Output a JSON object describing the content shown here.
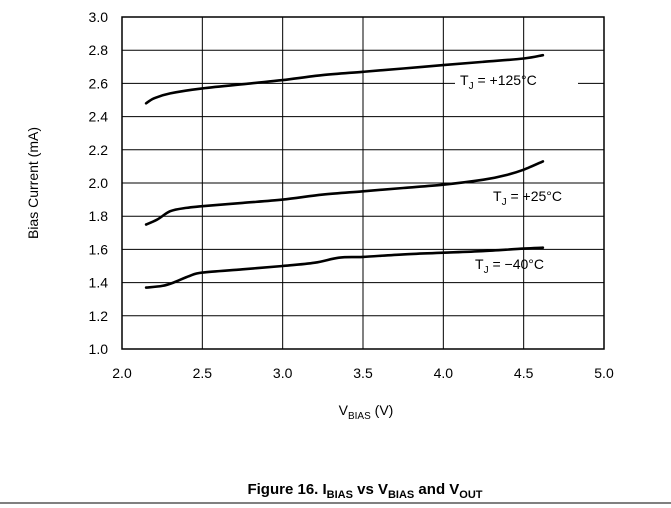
{
  "chart_data": {
    "type": "line",
    "xlabel": {
      "main": "V",
      "sub": "BIAS",
      "unit": " (V)"
    },
    "ylabel": "Bias Current (mA)",
    "xlim": [
      2.0,
      5.0
    ],
    "ylim": [
      1.0,
      3.0
    ],
    "x_ticks": [
      "2.0",
      "2.5",
      "3.0",
      "3.5",
      "4.0",
      "4.5",
      "5.0"
    ],
    "y_ticks": [
      "1.0",
      "1.2",
      "1.4",
      "1.6",
      "1.8",
      "2.0",
      "2.2",
      "2.4",
      "2.6",
      "2.8",
      "3.0"
    ],
    "grid": true,
    "series": [
      {
        "label": {
          "main": "T",
          "sub": "J",
          "rest": " = +125°C"
        },
        "points": [
          [
            2.15,
            2.48
          ],
          [
            2.2,
            2.51
          ],
          [
            2.3,
            2.54
          ],
          [
            2.5,
            2.57
          ],
          [
            2.8,
            2.6
          ],
          [
            3.0,
            2.62
          ],
          [
            3.25,
            2.65
          ],
          [
            3.5,
            2.67
          ],
          [
            3.75,
            2.69
          ],
          [
            4.0,
            2.71
          ],
          [
            4.25,
            2.73
          ],
          [
            4.5,
            2.75
          ],
          [
            4.62,
            2.77
          ]
        ]
      },
      {
        "label": {
          "main": "T",
          "sub": "J",
          "rest": " = +25°C"
        },
        "points": [
          [
            2.15,
            1.75
          ],
          [
            2.22,
            1.78
          ],
          [
            2.3,
            1.83
          ],
          [
            2.4,
            1.85
          ],
          [
            2.5,
            1.86
          ],
          [
            2.75,
            1.88
          ],
          [
            3.0,
            1.9
          ],
          [
            3.25,
            1.93
          ],
          [
            3.5,
            1.95
          ],
          [
            3.75,
            1.97
          ],
          [
            4.0,
            1.99
          ],
          [
            4.25,
            2.02
          ],
          [
            4.4,
            2.05
          ],
          [
            4.5,
            2.08
          ],
          [
            4.62,
            2.13
          ]
        ]
      },
      {
        "label": {
          "main": "T",
          "sub": "J",
          "rest": " = −40°C"
        },
        "points": [
          [
            2.15,
            1.37
          ],
          [
            2.25,
            1.38
          ],
          [
            2.32,
            1.4
          ],
          [
            2.42,
            1.44
          ],
          [
            2.5,
            1.46
          ],
          [
            2.75,
            1.48
          ],
          [
            3.0,
            1.5
          ],
          [
            3.2,
            1.52
          ],
          [
            3.35,
            1.55
          ],
          [
            3.5,
            1.555
          ],
          [
            3.75,
            1.57
          ],
          [
            4.0,
            1.58
          ],
          [
            4.25,
            1.59
          ],
          [
            4.5,
            1.605
          ],
          [
            4.62,
            1.61
          ]
        ]
      }
    ]
  },
  "caption": {
    "prefix": "Figure 16. I",
    "sub1": "BIAS",
    "mid1": " vs V",
    "sub2": "BIAS",
    "mid2": " and V",
    "sub3": "OUT"
  }
}
